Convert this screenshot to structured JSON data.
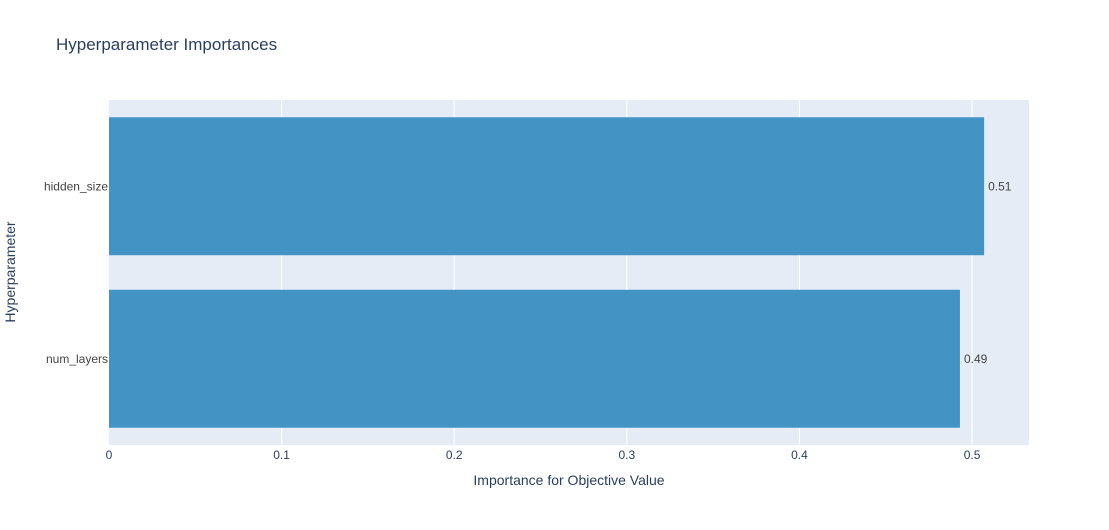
{
  "chart_data": {
    "type": "bar",
    "orientation": "horizontal",
    "title": "Hyperparameter Importances",
    "xlabel": "Importance for Objective Value",
    "ylabel": "Hyperparameter",
    "categories": [
      "hidden_size",
      "num_layers"
    ],
    "values": [
      0.507,
      0.493
    ],
    "value_labels": [
      "0.51",
      "0.49"
    ],
    "xlim": [
      0,
      0.533
    ],
    "xticks": [
      0,
      0.1,
      0.2,
      0.3,
      0.4,
      0.5
    ],
    "xtick_labels": [
      "0",
      "0.1",
      "0.2",
      "0.3",
      "0.4",
      "0.5"
    ],
    "grid": true,
    "legend": "none",
    "colors": {
      "bar": "#4393c5",
      "plot_background": "#e5ecf6",
      "grid": "#ffffff",
      "text": "#2a3f5f",
      "label_text": "#444444"
    }
  }
}
